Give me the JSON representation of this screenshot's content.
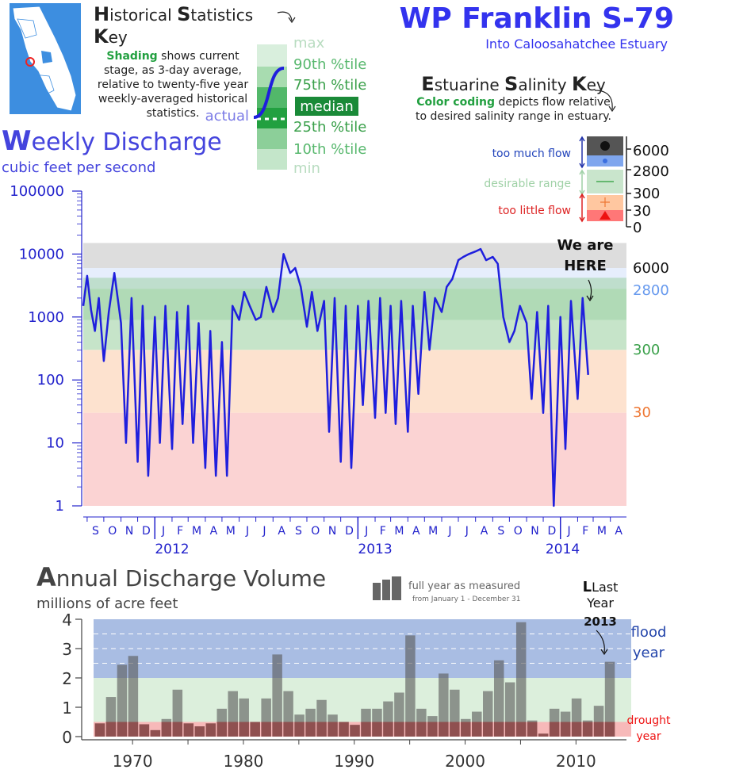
{
  "header": {
    "title": "WP Franklin S-79",
    "subtitle": "Into Caloosahatchee Estuary"
  },
  "historical_key": {
    "title_parts": [
      "H",
      "istorical ",
      "S",
      "tatistics ",
      "K",
      "ey"
    ],
    "text_bold": "Shading",
    "text_rest": " shows current stage, as 3-day average, relative to twenty-five year weekly-averaged historical statistics.",
    "levels": [
      "max",
      "90th %tile",
      "75th %tile",
      "median",
      "25th %tile",
      "10th %tile",
      "min"
    ],
    "actual_label": "actual"
  },
  "salinity_key": {
    "title_parts": [
      "E",
      "stuarine ",
      "S",
      "alinity ",
      "K",
      "ey"
    ],
    "text_bold": "Color coding",
    "text_rest": " depicts flow relative to desired salinity range in estuary.",
    "too_much": "too much flow",
    "desirable": "desirable range",
    "too_little": "too little flow",
    "thresholds": [
      "6000",
      "2800",
      "300",
      "30",
      "0"
    ]
  },
  "weekly": {
    "title_big": "W",
    "title_rest": "eekly Discharge",
    "units": "cubic feet per second",
    "y_ticks": [
      "100000",
      "10000",
      "1000",
      "100",
      "10",
      "1"
    ],
    "threshold_labels": [
      "6000",
      "2800",
      "300",
      "30"
    ],
    "months": [
      "S",
      "O",
      "N",
      "D",
      "J",
      "F",
      "M",
      "A",
      "M",
      "J",
      "J",
      "A",
      "S",
      "O",
      "N",
      "D",
      "J",
      "F",
      "M",
      "A",
      "M",
      "J",
      "J",
      "A",
      "S",
      "O",
      "N",
      "D",
      "J",
      "F",
      "M",
      "A"
    ],
    "years": [
      "2012",
      "2013",
      "2014"
    ],
    "we_are_here_1": "We are",
    "we_are_here_2": "HERE",
    "colors": {
      "flow": "#1f1fdd",
      "too_much": "#6a8fe0",
      "flood": "#444444",
      "desirable": "#3aa04a",
      "too_little": "#ff9955",
      "drought": "#ee3333"
    }
  },
  "annual": {
    "title_big": "A",
    "title_rest": "nnual Discharge Volume",
    "units": "millions of acre feet",
    "legend_main": "full year as measured",
    "legend_sub": "from January 1 - December 31",
    "last_year_1": "Last",
    "last_year_2": "Year",
    "last_year_3": "2013",
    "flood_1": "flood",
    "flood_2": "year",
    "drought_1": "drought",
    "drought_2": "year"
  },
  "chart_data": [
    {
      "type": "line",
      "title": "Weekly Discharge",
      "ylabel": "cubic feet per second",
      "yscale": "log",
      "ylim": [
        1,
        100000
      ],
      "x_range": [
        "2011-08-25",
        "2014-04-30"
      ],
      "thresholds": {
        "too_much_flow": 6000,
        "high": 2800,
        "desirable_min": 300,
        "too_little": 30
      },
      "series": [
        {
          "name": "actual",
          "x": [
            "2011-08-25",
            "2011-09-01",
            "2011-09-08",
            "2011-09-15",
            "2011-09-22",
            "2011-10-01",
            "2011-10-10",
            "2011-10-20",
            "2011-11-01",
            "2011-11-10",
            "2011-11-20",
            "2011-12-01",
            "2011-12-10",
            "2011-12-20",
            "2012-01-01",
            "2012-01-10",
            "2012-01-20",
            "2012-02-01",
            "2012-02-10",
            "2012-02-20",
            "2012-03-01",
            "2012-03-10",
            "2012-03-20",
            "2012-04-01",
            "2012-04-10",
            "2012-04-20",
            "2012-05-01",
            "2012-05-10",
            "2012-05-20",
            "2012-06-01",
            "2012-06-10",
            "2012-06-20",
            "2012-07-01",
            "2012-07-10",
            "2012-07-20",
            "2012-08-01",
            "2012-08-10",
            "2012-08-20",
            "2012-09-01",
            "2012-09-10",
            "2012-09-20",
            "2012-10-01",
            "2012-10-10",
            "2012-10-20",
            "2012-11-01",
            "2012-11-10",
            "2012-11-20",
            "2012-12-01",
            "2012-12-10",
            "2012-12-20",
            "2013-01-01",
            "2013-01-10",
            "2013-01-20",
            "2013-02-01",
            "2013-02-10",
            "2013-02-20",
            "2013-03-01",
            "2013-03-10",
            "2013-03-20",
            "2013-04-01",
            "2013-04-10",
            "2013-04-20",
            "2013-05-01",
            "2013-05-10",
            "2013-05-20",
            "2013-06-01",
            "2013-06-10",
            "2013-06-20",
            "2013-07-01",
            "2013-07-10",
            "2013-07-20",
            "2013-08-01",
            "2013-08-10",
            "2013-08-20",
            "2013-09-01",
            "2013-09-10",
            "2013-09-20",
            "2013-10-01",
            "2013-10-10",
            "2013-10-20",
            "2013-11-01",
            "2013-11-10",
            "2013-11-20",
            "2013-12-01",
            "2013-12-10",
            "2013-12-20",
            "2014-01-01",
            "2014-01-10",
            "2014-01-20",
            "2014-02-01",
            "2014-02-10",
            "2014-02-20"
          ],
          "values": [
            1500,
            4500,
            1300,
            600,
            2000,
            200,
            1200,
            5000,
            800,
            10,
            2000,
            5,
            1500,
            3,
            1000,
            10,
            1500,
            8,
            1200,
            20,
            1500,
            10,
            800,
            4,
            600,
            3,
            400,
            3,
            1500,
            900,
            2500,
            1500,
            900,
            1000,
            3000,
            1200,
            2000,
            10000,
            5000,
            6000,
            3000,
            700,
            2500,
            600,
            1800,
            15,
            2000,
            5,
            1500,
            4,
            1500,
            40,
            1800,
            25,
            2000,
            30,
            1500,
            20,
            1800,
            15,
            1500,
            60,
            2500,
            300,
            2000,
            1200,
            3000,
            4000,
            8000,
            9000,
            10000,
            11000,
            12000,
            8000,
            9000,
            7000,
            1000,
            400,
            600,
            1500,
            800,
            50,
            1200,
            30,
            1500,
            1,
            1000,
            8,
            1800,
            50,
            2000,
            120
          ]
        }
      ]
    },
    {
      "type": "bar",
      "title": "Annual Discharge Volume",
      "ylabel": "millions of acre feet",
      "ylim": [
        0,
        4
      ],
      "zones": {
        "drought_below": 0.5,
        "flood_above": 2.0
      },
      "categories": [
        1967,
        1968,
        1969,
        1970,
        1971,
        1972,
        1973,
        1974,
        1975,
        1976,
        1977,
        1978,
        1979,
        1980,
        1981,
        1982,
        1983,
        1984,
        1985,
        1986,
        1987,
        1988,
        1989,
        1990,
        1991,
        1992,
        1993,
        1994,
        1995,
        1996,
        1997,
        1998,
        1999,
        2000,
        2001,
        2002,
        2003,
        2004,
        2005,
        2006,
        2007,
        2008,
        2009,
        2010,
        2011,
        2012,
        2013
      ],
      "values": [
        0.45,
        1.35,
        2.45,
        2.75,
        0.42,
        0.22,
        0.6,
        1.6,
        0.45,
        0.35,
        0.45,
        0.95,
        1.55,
        1.3,
        0.5,
        1.3,
        2.8,
        1.55,
        0.75,
        0.95,
        1.25,
        0.75,
        0.5,
        0.4,
        0.95,
        0.95,
        1.2,
        1.5,
        3.45,
        0.95,
        0.7,
        2.15,
        1.6,
        0.6,
        0.85,
        1.55,
        2.6,
        1.85,
        3.9,
        0.55,
        0.1,
        0.95,
        0.85,
        1.3,
        0.55,
        1.05,
        2.55
      ]
    }
  ]
}
